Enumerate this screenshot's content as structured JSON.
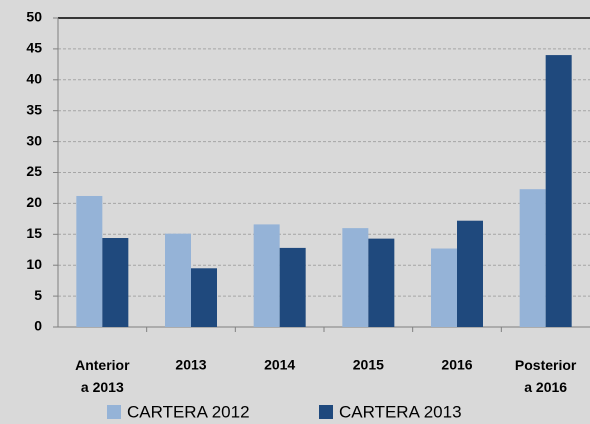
{
  "chart_data": {
    "type": "bar",
    "categories": [
      "Anterior a 2013",
      "2013",
      "2014",
      "2015",
      "2016",
      "Posterior a 2016"
    ],
    "series": [
      {
        "name": "CARTERA 2012",
        "color": "#95b3d7",
        "values": [
          21.2,
          15.1,
          16.6,
          16.0,
          12.7,
          22.3
        ]
      },
      {
        "name": "CARTERA 2013",
        "color": "#1f497d",
        "values": [
          14.4,
          9.5,
          12.8,
          14.3,
          17.2,
          44.0
        ]
      }
    ],
    "ylim": [
      0,
      50
    ],
    "yticks": [
      0,
      5,
      10,
      15,
      20,
      25,
      30,
      35,
      40,
      45,
      50
    ],
    "grid": true
  }
}
